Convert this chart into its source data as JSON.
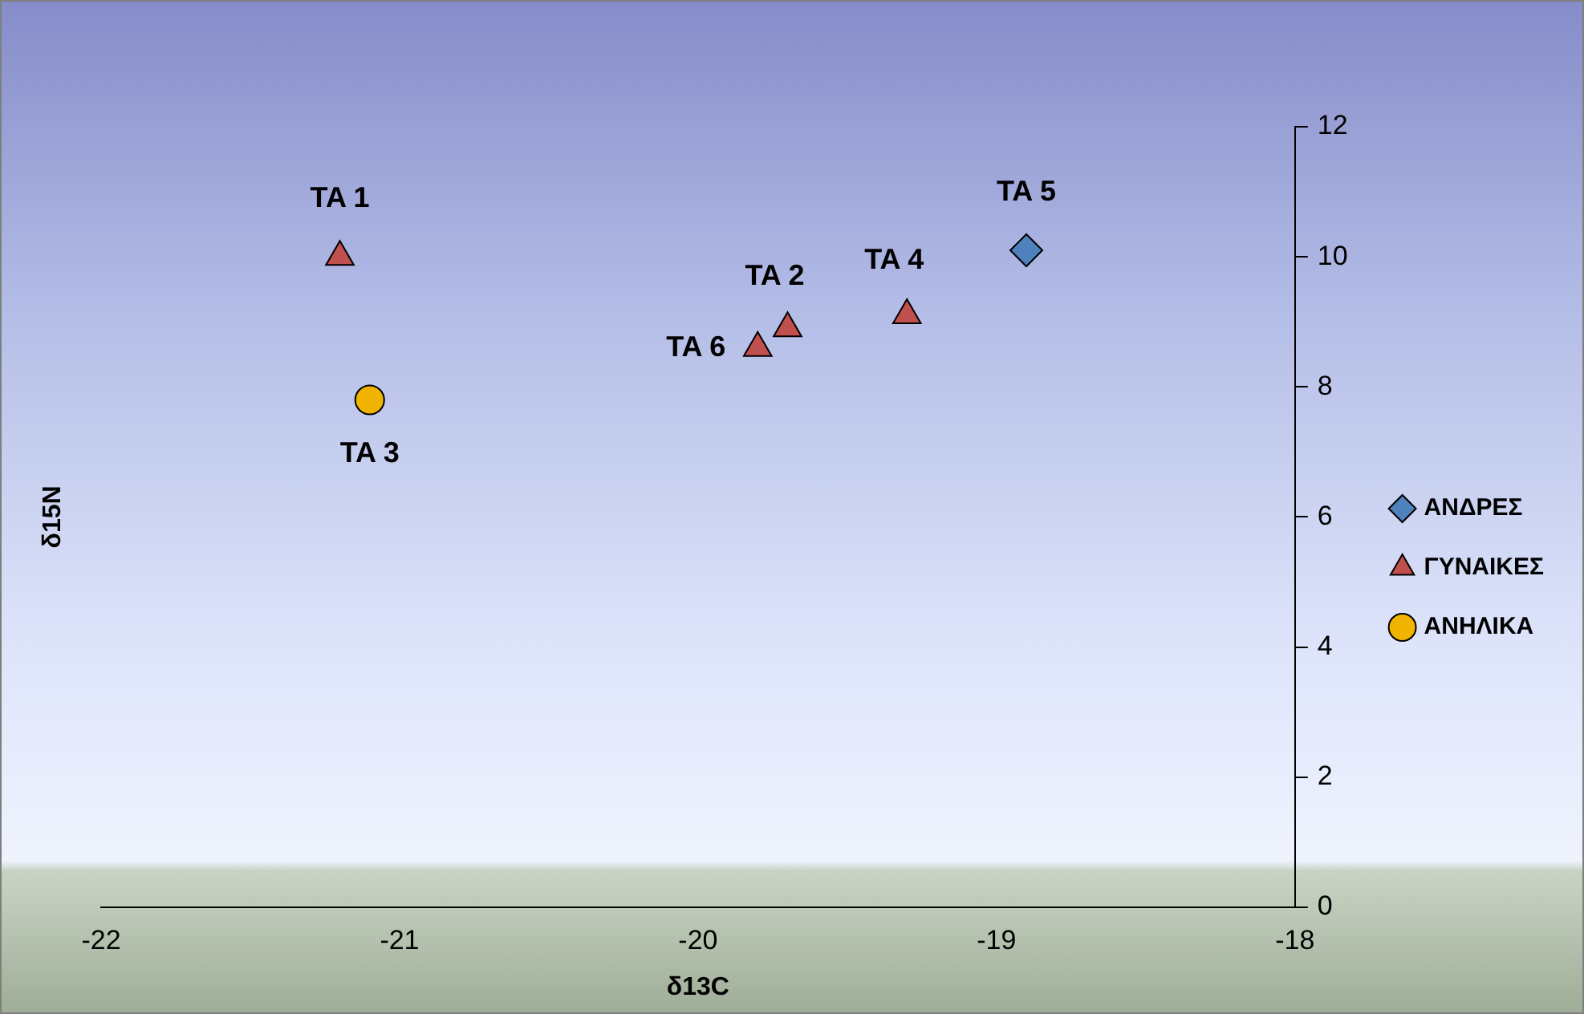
{
  "chart_data": {
    "type": "scatter",
    "xlabel": "δ13C",
    "ylabel": "δ15N",
    "xlim": [
      -22,
      -18
    ],
    "xticks": [
      -22,
      -21,
      -20,
      -19,
      -18
    ],
    "ylim": [
      0,
      12
    ],
    "yticks": [
      0,
      2,
      4,
      6,
      8,
      10,
      12
    ],
    "grid": false,
    "legend": "right",
    "series": [
      {
        "name": "ΑΝΔΡΕΣ",
        "color": "#4f81bd",
        "marker": "diamond",
        "x": [
          -18.9
        ],
        "values": [
          10.1
        ]
      },
      {
        "name": "ΓΥΝΑΙΚΕΣ",
        "color": "#c0504d",
        "marker": "triangle",
        "x": [
          -21.2,
          -19.7,
          -19.3,
          -19.8
        ],
        "values": [
          10.0,
          8.9,
          9.1,
          8.6
        ]
      },
      {
        "name": "ΑΝΗΛΙΚΑ",
        "color": "#f0b400",
        "marker": "circle",
        "x": [
          -21.1
        ],
        "values": [
          7.8
        ]
      }
    ],
    "annotations": [
      {
        "text": "TA 1",
        "x": -21.2,
        "y": 10.0
      },
      {
        "text": "TA 2",
        "x": -19.7,
        "y": 8.9
      },
      {
        "text": "TA 3",
        "x": -21.1,
        "y": 7.8
      },
      {
        "text": "TA 4",
        "x": -19.3,
        "y": 9.1
      },
      {
        "text": "TA 5",
        "x": -18.9,
        "y": 10.1
      },
      {
        "text": "TA 6",
        "x": -19.8,
        "y": 8.6
      }
    ]
  }
}
